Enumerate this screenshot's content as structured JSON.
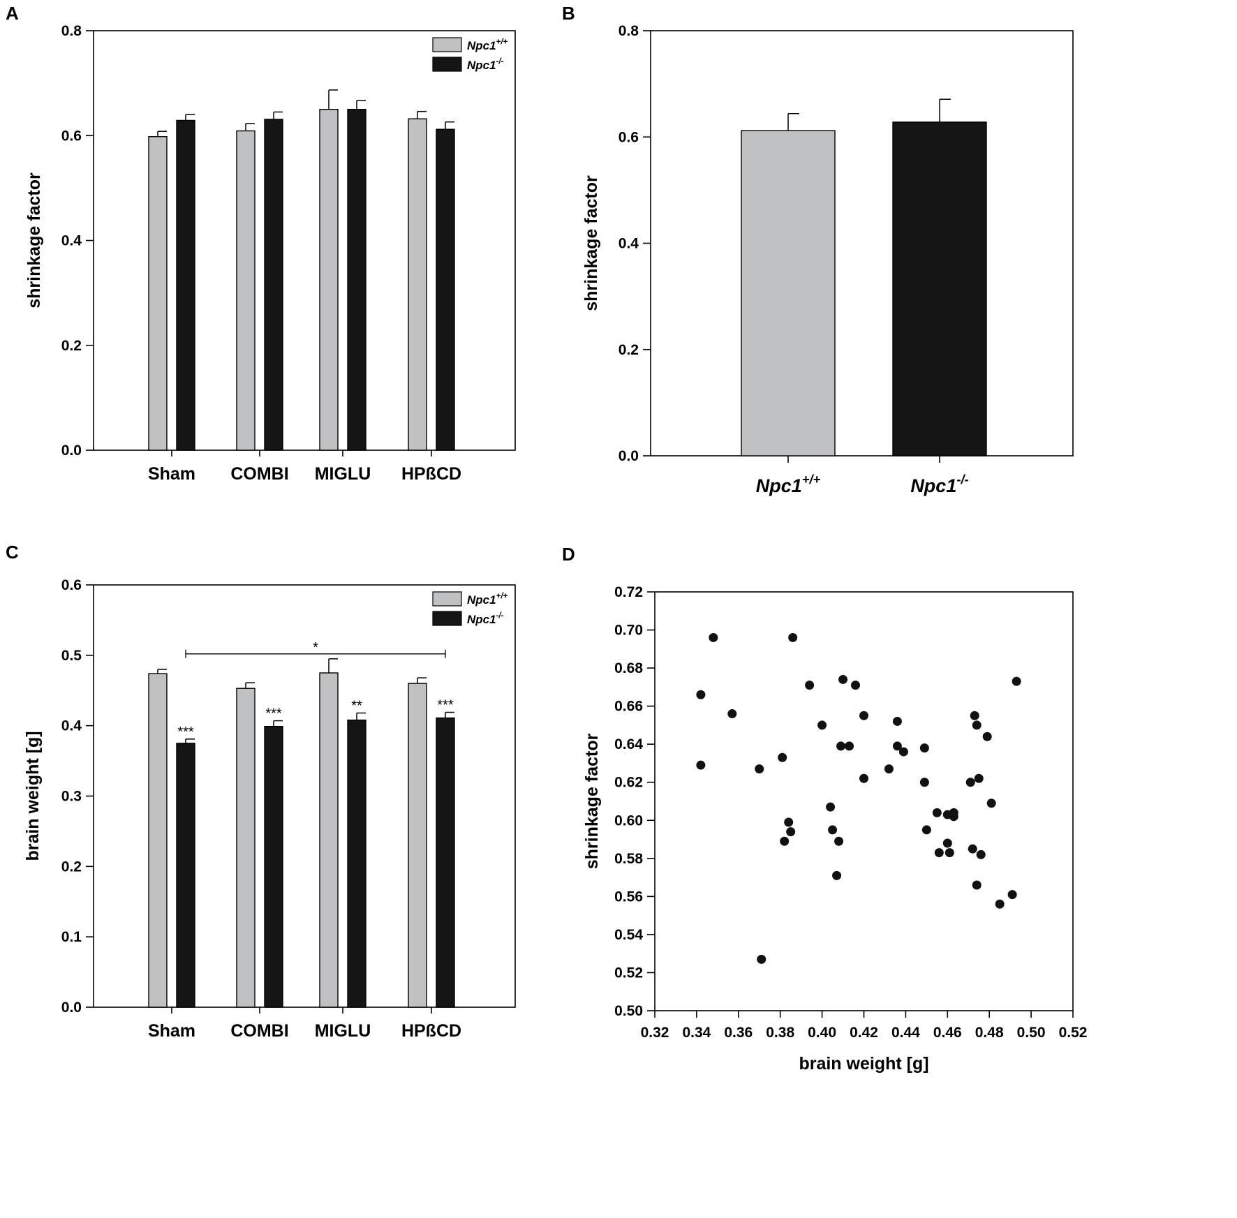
{
  "colors": {
    "wt": "#c0c1c3",
    "ko": "#151515",
    "axis": "#000000"
  },
  "chart_data": [
    {
      "id": "A",
      "type": "bar",
      "panel_label": "A",
      "ylabel": "shrinkage factor",
      "xlabel": "",
      "ylim": [
        0,
        0.8
      ],
      "yticks": [
        "0.0",
        "0.2",
        "0.4",
        "0.6",
        "0.8"
      ],
      "categories": [
        "Sham",
        "COMBI",
        "MIGLU",
        "HPßCD"
      ],
      "series": [
        {
          "name": "Npc1",
          "sup": "+/+",
          "values": [
            0.598,
            0.609,
            0.65,
            0.632
          ],
          "errors": [
            0.01,
            0.014,
            0.037,
            0.014
          ]
        },
        {
          "name": "Npc1",
          "sup": "-/-",
          "values": [
            0.629,
            0.631,
            0.65,
            0.612
          ],
          "errors": [
            0.011,
            0.014,
            0.017,
            0.014
          ]
        }
      ],
      "annotations": [],
      "legend": "top-right"
    },
    {
      "id": "B",
      "type": "bar",
      "panel_label": "B",
      "ylabel": "shrinkage factor",
      "xlabel": "",
      "ylim": [
        0,
        0.8
      ],
      "yticks": [
        "0.0",
        "0.2",
        "0.4",
        "0.6",
        "0.8"
      ],
      "categories": [
        {
          "name": "Npc1",
          "sup": "+/+"
        },
        {
          "name": "Npc1",
          "sup": "-/-"
        }
      ],
      "values": [
        0.612,
        0.628
      ],
      "errors": [
        0.032,
        0.043
      ]
    },
    {
      "id": "C",
      "type": "bar",
      "panel_label": "C",
      "ylabel": "brain weight [g]",
      "xlabel": "",
      "ylim": [
        0,
        0.6
      ],
      "yticks": [
        "0.0",
        "0.1",
        "0.2",
        "0.3",
        "0.4",
        "0.5",
        "0.6"
      ],
      "categories": [
        "Sham",
        "COMBI",
        "MIGLU",
        "HPßCD"
      ],
      "series": [
        {
          "name": "Npc1",
          "sup": "+/+",
          "values": [
            0.474,
            0.453,
            0.475,
            0.46
          ],
          "errors": [
            0.006,
            0.008,
            0.02,
            0.008
          ]
        },
        {
          "name": "Npc1",
          "sup": "-/-",
          "values": [
            0.375,
            0.399,
            0.408,
            0.411
          ],
          "errors": [
            0.006,
            0.008,
            0.01,
            0.008
          ]
        }
      ],
      "annotations": [
        "***",
        "***",
        "**",
        "***"
      ],
      "bracket": {
        "from_category": "Sham",
        "to_category": "HPßCD",
        "y": 0.502,
        "label": "*"
      },
      "legend": "top-right"
    },
    {
      "id": "D",
      "type": "scatter",
      "panel_label": "D",
      "xlabel": "brain weight [g]",
      "ylabel": "shrinkage factor",
      "xlim": [
        0.32,
        0.52
      ],
      "ylim": [
        0.5,
        0.72
      ],
      "xticks": [
        "0.32",
        "0.34",
        "0.36",
        "0.38",
        "0.40",
        "0.42",
        "0.44",
        "0.46",
        "0.48",
        "0.50",
        "0.52"
      ],
      "yticks": [
        "0.50",
        "0.52",
        "0.54",
        "0.56",
        "0.58",
        "0.60",
        "0.62",
        "0.64",
        "0.66",
        "0.68",
        "0.70",
        "0.72"
      ],
      "points": [
        [
          0.342,
          0.666
        ],
        [
          0.342,
          0.629
        ],
        [
          0.348,
          0.696
        ],
        [
          0.357,
          0.656
        ],
        [
          0.37,
          0.627
        ],
        [
          0.371,
          0.527
        ],
        [
          0.381,
          0.633
        ],
        [
          0.382,
          0.589
        ],
        [
          0.384,
          0.599
        ],
        [
          0.385,
          0.594
        ],
        [
          0.386,
          0.696
        ],
        [
          0.394,
          0.671
        ],
        [
          0.4,
          0.65
        ],
        [
          0.404,
          0.607
        ],
        [
          0.405,
          0.595
        ],
        [
          0.407,
          0.571
        ],
        [
          0.408,
          0.589
        ],
        [
          0.409,
          0.639
        ],
        [
          0.41,
          0.674
        ],
        [
          0.413,
          0.639
        ],
        [
          0.416,
          0.671
        ],
        [
          0.42,
          0.655
        ],
        [
          0.42,
          0.622
        ],
        [
          0.432,
          0.627
        ],
        [
          0.436,
          0.652
        ],
        [
          0.436,
          0.639
        ],
        [
          0.439,
          0.636
        ],
        [
          0.449,
          0.638
        ],
        [
          0.449,
          0.62
        ],
        [
          0.45,
          0.595
        ],
        [
          0.455,
          0.604
        ],
        [
          0.456,
          0.583
        ],
        [
          0.46,
          0.603
        ],
        [
          0.46,
          0.588
        ],
        [
          0.461,
          0.583
        ],
        [
          0.463,
          0.604
        ],
        [
          0.463,
          0.602
        ],
        [
          0.471,
          0.62
        ],
        [
          0.472,
          0.585
        ],
        [
          0.473,
          0.655
        ],
        [
          0.474,
          0.65
        ],
        [
          0.474,
          0.566
        ],
        [
          0.475,
          0.622
        ],
        [
          0.476,
          0.582
        ],
        [
          0.479,
          0.644
        ],
        [
          0.481,
          0.609
        ],
        [
          0.485,
          0.556
        ],
        [
          0.491,
          0.561
        ],
        [
          0.493,
          0.673
        ]
      ]
    }
  ]
}
